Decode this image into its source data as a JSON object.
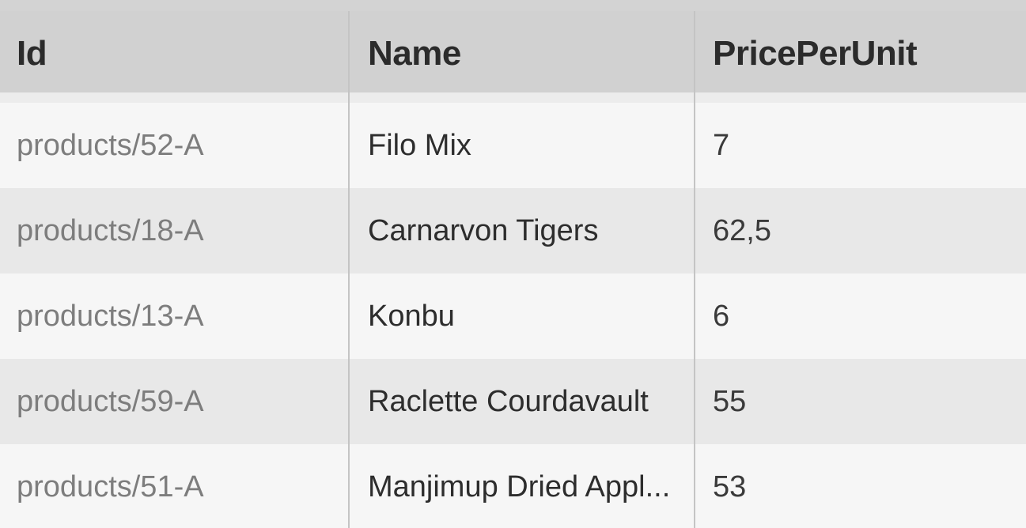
{
  "table": {
    "columns": {
      "id": "Id",
      "name": "Name",
      "price": "PricePerUnit"
    },
    "rows": [
      {
        "id": "products/52-A",
        "name": "Filo Mix",
        "price": "7"
      },
      {
        "id": "products/18-A",
        "name": "Carnarvon Tigers",
        "price": "62,5"
      },
      {
        "id": "products/13-A",
        "name": "Konbu",
        "price": "6"
      },
      {
        "id": "products/59-A",
        "name": "Raclette Courdavault",
        "price": "55"
      },
      {
        "id": "products/51-A",
        "name": "Manjimup Dried Appl...",
        "price": "53"
      }
    ]
  }
}
